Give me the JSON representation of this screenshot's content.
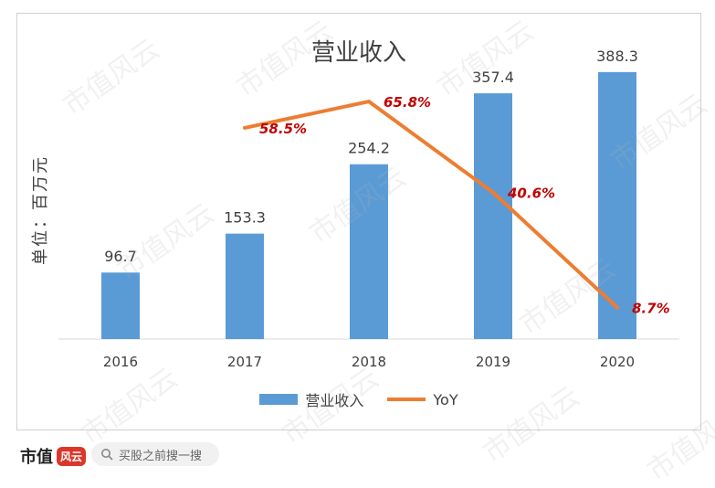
{
  "chart_data": {
    "type": "bar",
    "title": "营业收入",
    "ylabel": "单位：百万元",
    "categories": [
      "2016",
      "2017",
      "2018",
      "2019",
      "2020"
    ],
    "series": [
      {
        "name": "营业收入",
        "type": "bar",
        "values": [
          96.7,
          153.3,
          254.2,
          357.4,
          388.3
        ],
        "labels": [
          "96.7",
          "153.3",
          "254.2",
          "357.4",
          "388.3"
        ],
        "color": "#5b9bd5"
      },
      {
        "name": "YoY",
        "type": "line",
        "values": [
          null,
          58.5,
          65.8,
          40.6,
          8.7
        ],
        "labels": [
          "",
          "58.5%",
          "65.8%",
          "40.6%",
          "8.7%"
        ],
        "color": "#ed7d31",
        "label_color": "#c00000"
      }
    ],
    "ylim": [
      0,
      420
    ],
    "y2lim": [
      0,
      80
    ],
    "grid": false,
    "legend": "bottom"
  },
  "footer": {
    "brand": "市值",
    "brand_seal": "风云",
    "search_placeholder": "买股之前搜一搜"
  },
  "watermark": "市值风云"
}
